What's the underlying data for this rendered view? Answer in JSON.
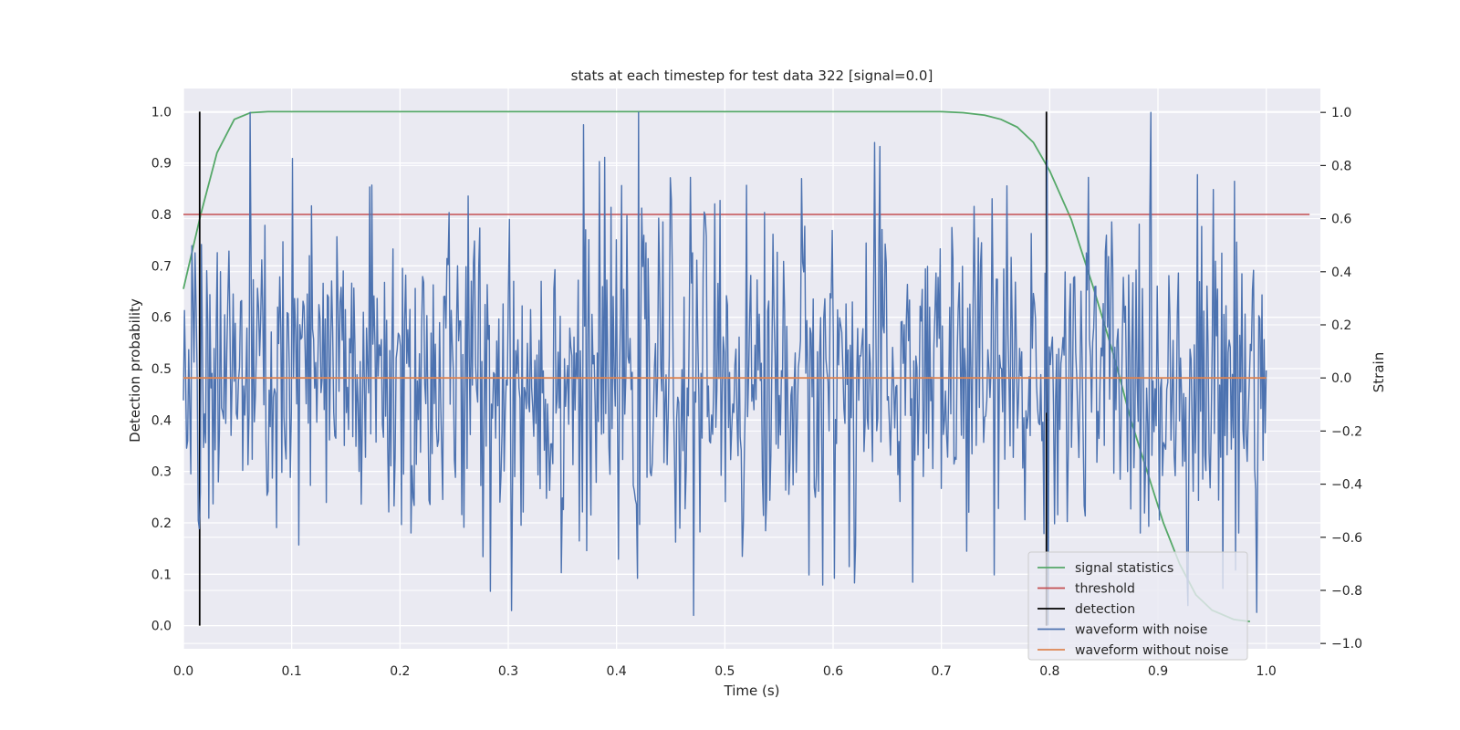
{
  "chart_data": {
    "type": "line",
    "title": "stats at each timestep for test data 322 [signal=0.0]",
    "xlabel": "Time (s)",
    "ylabel_left": "Detection probability",
    "ylabel_right": "Strain",
    "xlim": [
      0.0,
      1.05
    ],
    "ylim_left": [
      -0.045,
      1.045
    ],
    "ylim_right": [
      -1.02,
      1.09
    ],
    "x_ticks": [
      "0.0",
      "0.1",
      "0.2",
      "0.3",
      "0.4",
      "0.5",
      "0.6",
      "0.7",
      "0.8",
      "0.9",
      "1.0"
    ],
    "x_tick_values": [
      0.0,
      0.1,
      0.2,
      0.3,
      0.4,
      0.5,
      0.6,
      0.7,
      0.8,
      0.9,
      1.0
    ],
    "y_ticks_left": [
      "0.0",
      "0.1",
      "0.2",
      "0.3",
      "0.4",
      "0.5",
      "0.6",
      "0.7",
      "0.8",
      "0.9",
      "1.0"
    ],
    "y_tick_values_left": [
      0.0,
      0.1,
      0.2,
      0.3,
      0.4,
      0.5,
      0.6,
      0.7,
      0.8,
      0.9,
      1.0
    ],
    "y_ticks_right": [
      "−1.0",
      "−0.8",
      "−0.6",
      "−0.4",
      "−0.2",
      "0.0",
      "0.2",
      "0.4",
      "0.6",
      "0.8",
      "1.0"
    ],
    "y_tick_values_right": [
      -1.0,
      -0.8,
      -0.6,
      -0.4,
      -0.2,
      0.0,
      0.2,
      0.4,
      0.6,
      0.8,
      1.0
    ],
    "grid": true,
    "legend_position": "lower-right",
    "series": [
      {
        "name": "signal statistics",
        "color": "#55a868",
        "axis": "left",
        "x": [
          0.0,
          0.016,
          0.031,
          0.047,
          0.062,
          0.078,
          0.1,
          0.2,
          0.3,
          0.4,
          0.5,
          0.6,
          0.7,
          0.72,
          0.74,
          0.755,
          0.77,
          0.785,
          0.8,
          0.82,
          0.84,
          0.86,
          0.875,
          0.89,
          0.905,
          0.92,
          0.935,
          0.95,
          0.97,
          0.985
        ],
        "y": [
          0.655,
          0.8,
          0.92,
          0.985,
          0.998,
          1.0,
          1.0,
          1.0,
          1.0,
          1.0,
          1.0,
          1.0,
          1.0,
          0.998,
          0.993,
          0.985,
          0.97,
          0.94,
          0.885,
          0.79,
          0.66,
          0.52,
          0.4,
          0.3,
          0.2,
          0.12,
          0.06,
          0.03,
          0.012,
          0.008
        ]
      },
      {
        "name": "threshold",
        "color": "#c44e52",
        "axis": "left",
        "x": [
          0.0,
          1.04
        ],
        "y": [
          0.8,
          0.8
        ]
      },
      {
        "name": "detection",
        "color": "#000000",
        "axis": "left",
        "segments": [
          {
            "x": 0.015,
            "y": [
              0.0,
              1.0
            ]
          },
          {
            "x": 0.797,
            "y": [
              0.0,
              1.0
            ]
          }
        ]
      },
      {
        "name": "waveform with noise",
        "color": "#4c72b0",
        "axis": "right",
        "x_range": [
          0.0,
          1.0
        ],
        "num_points": 1024,
        "y_range_approx": [
          -0.93,
          1.0
        ],
        "y_std_approx": 0.32
      },
      {
        "name": "waveform without noise",
        "color": "#dd8452",
        "axis": "right",
        "x": [
          0.0,
          1.0
        ],
        "y": [
          0.0,
          0.0
        ]
      }
    ],
    "legend": [
      "signal statistics",
      "threshold",
      "detection",
      "waveform with noise",
      "waveform without noise"
    ]
  }
}
